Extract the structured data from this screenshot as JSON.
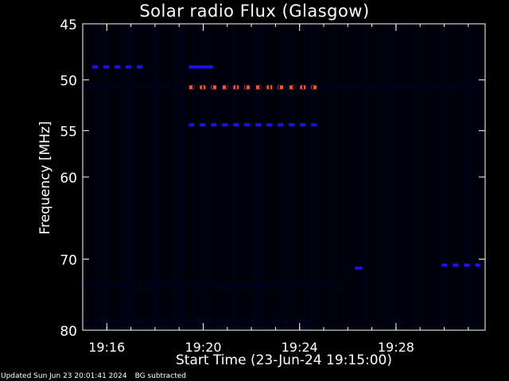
{
  "chart_data": {
    "type": "heatmap",
    "title": "Solar radio Flux (Glasgow)",
    "xlabel": "Start Time (23-Jun-24 19:15:00)",
    "ylabel": "Frequency [MHz]",
    "x_range_minutes_after_start": [
      0,
      16.7
    ],
    "y_range_mhz": [
      45,
      80
    ],
    "y_scale": "log",
    "grid": false,
    "x_ticks": [
      {
        "label": "19:16",
        "minute": 1
      },
      {
        "label": "19:20",
        "minute": 5
      },
      {
        "label": "19:24",
        "minute": 9
      },
      {
        "label": "19:28",
        "minute": 13
      }
    ],
    "y_ticks": [
      {
        "label": "45",
        "mhz": 45
      },
      {
        "label": "50",
        "mhz": 50
      },
      {
        "label": "55",
        "mhz": 55
      },
      {
        "label": "60",
        "mhz": 60
      },
      {
        "label": "70",
        "mhz": 70
      },
      {
        "label": "80",
        "mhz": 80
      }
    ],
    "colors": {
      "background": "#000000",
      "low": "#00002a",
      "medium": "#1a10ff",
      "high": "#ff5020",
      "axes": "#ffffff"
    },
    "features": [
      {
        "freq_mhz": 50.7,
        "start_min": 4.4,
        "end_min": 9.9,
        "intensity": "high",
        "pattern": "dashed"
      },
      {
        "freq_mhz": 48.8,
        "start_min": 0.4,
        "end_min": 2.7,
        "intensity": "medium",
        "pattern": "dashed"
      },
      {
        "freq_mhz": 48.8,
        "start_min": 4.4,
        "end_min": 5.4,
        "intensity": "medium",
        "pattern": "solid"
      },
      {
        "freq_mhz": 54.4,
        "start_min": 4.4,
        "end_min": 9.9,
        "intensity": "medium",
        "pattern": "dashed"
      },
      {
        "freq_mhz": 50.7,
        "start_min": 0.0,
        "end_min": 16.7,
        "intensity": "low",
        "pattern": "dotted"
      },
      {
        "freq_mhz": 71.2,
        "start_min": 11.3,
        "end_min": 11.6,
        "intensity": "medium",
        "pattern": "solid"
      },
      {
        "freq_mhz": 70.8,
        "start_min": 14.9,
        "end_min": 16.5,
        "intensity": "medium",
        "pattern": "dashed"
      },
      {
        "freq_mhz": 73.6,
        "start_min": 0.0,
        "end_min": 10.5,
        "intensity": "low",
        "pattern": "dotted"
      },
      {
        "freq_mhz": 78.5,
        "start_min": 0.0,
        "end_min": 9.5,
        "intensity": "low",
        "pattern": "dashed"
      },
      {
        "freq_mhz": 79.6,
        "start_min": 0.0,
        "end_min": 9.5,
        "intensity": "low",
        "pattern": "dotted"
      }
    ]
  },
  "footer": {
    "updated": "Updated Sun Jun 23 20:01:41 2024",
    "note": "BG subtracted"
  }
}
